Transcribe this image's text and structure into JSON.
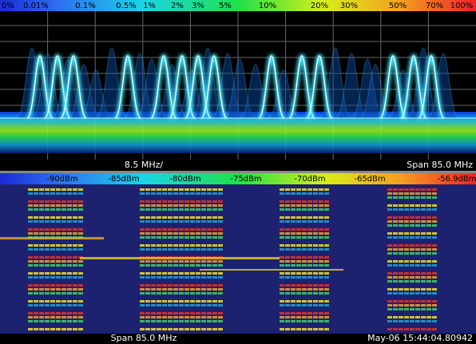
{
  "persistence_bar": {
    "labels": [
      "0%",
      "0.01%",
      "0.1%",
      "0.5%",
      "1%",
      "2%",
      "3%",
      "5%",
      "10%",
      "20%",
      "30%",
      "50%",
      "70%",
      "100%"
    ]
  },
  "spectrum": {
    "scale_label": "8.5 MHz/",
    "span_label": "Span 85.0 MHz"
  },
  "level_bar": {
    "labels": [
      "-90dBm",
      "-85dBm",
      "-80dBm",
      "-75dBm",
      "-70dBm",
      "-65dBm",
      "-56.9dBm"
    ]
  },
  "waterfall": {
    "span_label": "Span 85.0 MHz",
    "timestamp": "May-06 15:44:04.80942"
  }
}
